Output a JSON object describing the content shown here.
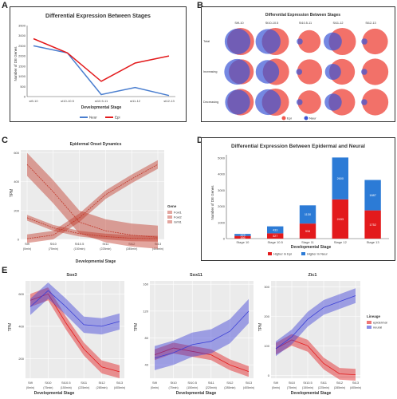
{
  "panel_letters": [
    "A",
    "B",
    "C",
    "D",
    "E"
  ],
  "chart_data": [
    {
      "id": "A",
      "type": "line",
      "title": "Differential Expression Between Stages",
      "xlabel": "Developmental Stage",
      "ylabel": "Number of DE Genes",
      "categories": [
        "st9-10",
        "st10-10.5",
        "st10.5-11",
        "st11-12",
        "st12-13"
      ],
      "yticks": [
        0,
        500,
        1000,
        1500,
        2000,
        2500,
        3000,
        3500
      ],
      "ylim": [
        0,
        3500
      ],
      "legend": "bottom",
      "series": [
        {
          "name": "Neur",
          "color": "#4a7ecf",
          "values": [
            2500,
            2150,
            100,
            450,
            50
          ]
        },
        {
          "name": "Epi",
          "color": "#e31a1c",
          "values": [
            2850,
            2150,
            750,
            1650,
            2000
          ]
        }
      ]
    },
    {
      "id": "B",
      "type": "venn-grid",
      "title": "Differential Expression Between Stages",
      "columns": [
        "St9-10",
        "St10-10.5",
        "St10.5-11",
        "St11-12",
        "St12-13"
      ],
      "rows": [
        "Total",
        "Increasing",
        "Decreasing"
      ],
      "legend": [
        "Epi",
        "Neur"
      ],
      "colors": {
        "Epi": "#f0584f",
        "Neur": "#3b55d6"
      },
      "cells": [
        [
          {
            "epi": 1.0,
            "neur": 0.9,
            "overlap": 0.8
          },
          {
            "epi": 1.0,
            "neur": 0.85,
            "overlap": 0.5
          },
          {
            "epi": 0.7,
            "neur": 0.05,
            "overlap": 0.0
          },
          {
            "epi": 1.0,
            "neur": 0.45,
            "overlap": 0.3
          },
          {
            "epi": 0.9,
            "neur": 0.05,
            "overlap": 0.0
          }
        ],
        [
          {
            "epi": 0.85,
            "neur": 0.9,
            "overlap": 0.7
          },
          {
            "epi": 0.95,
            "neur": 0.75,
            "overlap": 0.4
          },
          {
            "epi": 0.85,
            "neur": 0.05,
            "overlap": 0.0
          },
          {
            "epi": 0.9,
            "neur": 0.35,
            "overlap": 0.3
          },
          {
            "epi": 0.95,
            "neur": 0.05,
            "overlap": 0.0
          }
        ],
        [
          {
            "epi": 0.95,
            "neur": 0.85,
            "overlap": 0.8
          },
          {
            "epi": 1.0,
            "neur": 0.9,
            "overlap": 0.5
          },
          {
            "epi": 0.75,
            "neur": 0.05,
            "overlap": 0.0
          },
          {
            "epi": 0.95,
            "neur": 0.4,
            "overlap": 0.35
          },
          {
            "epi": 0.95,
            "neur": 0.05,
            "overlap": 0.0
          }
        ]
      ]
    },
    {
      "id": "C",
      "type": "line",
      "title": "Epidermal Onset Dynamics",
      "xlabel": "Developmental Stage",
      "ylabel": "TPM",
      "categories": [
        "St9",
        "St10",
        "St10.5",
        "St11",
        "St12",
        "St13"
      ],
      "sublabels": [
        "(0min)",
        "(75min)",
        "(150min)",
        "(225min)",
        "(285min)",
        "(405min)"
      ],
      "yticks": [
        0,
        200,
        400,
        600
      ],
      "ylim": [
        0,
        620
      ],
      "legend_title": "Gene",
      "legend": "right",
      "series": [
        {
          "name": "Foxi1",
          "color": "#c0392b",
          "values": [
            520,
            330,
            120,
            60,
            30,
            15
          ],
          "band": 80
        },
        {
          "name": "Foxi2",
          "color": "#c0392b",
          "values": [
            150,
            80,
            40,
            20,
            8,
            5
          ],
          "band": 20
        },
        {
          "name": "Grhl1",
          "color": "#c0392b",
          "values": [
            5,
            30,
            150,
            310,
            420,
            520
          ],
          "band": 30
        }
      ]
    },
    {
      "id": "D",
      "type": "bar",
      "stacked": true,
      "title": "Differential Expression Between Epidermal and Neural",
      "xlabel": "Developmental Stage",
      "ylabel": "Number of DE Genes",
      "categories": [
        "Stage 10",
        "Stage 10.5",
        "Stage 11",
        "Stage 12",
        "Stage 13"
      ],
      "yticks": [
        0,
        1000,
        2000,
        3000,
        4000,
        5000
      ],
      "ylim": [
        0,
        5200
      ],
      "legend": "bottom",
      "series": [
        {
          "name": "Higher in Epi",
          "color": "#e31a1c",
          "values": [
            166,
            327,
            934,
            2433,
            1752
          ]
        },
        {
          "name": "Higher in Neur",
          "color": "#2c7bd6",
          "values": [
            123,
            433,
            1130,
            2600,
            1887
          ]
        }
      ],
      "labels": {
        "epi": [
          "166",
          "327",
          "934",
          "2433",
          "1752"
        ],
        "neur": [
          "123",
          "433",
          "1130",
          "2600",
          "1887"
        ]
      }
    },
    {
      "id": "E1",
      "type": "line",
      "title": "Sox3",
      "xlabel": "Developmental Stage",
      "ylabel": "TPM",
      "categories": [
        "St9",
        "St10",
        "St10.5",
        "St11",
        "St12",
        "St13"
      ],
      "sublabels": [
        "(0min)",
        "(75min)",
        "(150min)",
        "(225min)",
        "(285min)",
        "(405min)"
      ],
      "yticks": [
        200,
        400,
        600
      ],
      "ylim": [
        80,
        680
      ],
      "series": [
        {
          "name": "epidermal",
          "color": "#e31a1c",
          "values": [
            560,
            600,
            420,
            260,
            150,
            120
          ],
          "band": 40
        },
        {
          "name": "neural",
          "color": "#3b3fd6",
          "values": [
            520,
            620,
            520,
            410,
            400,
            430
          ],
          "band": 50
        }
      ]
    },
    {
      "id": "E2",
      "type": "line",
      "title": "Sox11",
      "xlabel": "Developmental Stage",
      "ylabel": "TPM",
      "categories": [
        "St9",
        "St10",
        "St10.5",
        "St11",
        "St12",
        "St13"
      ],
      "sublabels": [
        "(0min)",
        "(75min)",
        "(150min)",
        "(225min)",
        "(285min)",
        "(405min)"
      ],
      "yticks": [
        40,
        80,
        120,
        160
      ],
      "ylim": [
        20,
        165
      ],
      "series": [
        {
          "name": "epidermal",
          "color": "#e31a1c",
          "values": [
            55,
            65,
            60,
            55,
            40,
            30
          ],
          "band": 8
        },
        {
          "name": "neural",
          "color": "#3b3fd6",
          "values": [
            50,
            58,
            70,
            75,
            90,
            120
          ],
          "band": 18
        }
      ]
    },
    {
      "id": "E3",
      "type": "line",
      "title": "Zic1",
      "xlabel": "Developmental Stage",
      "ylabel": "TPM",
      "categories": [
        "St9",
        "St10",
        "St10.5",
        "St11",
        "St12",
        "St13"
      ],
      "sublabels": [
        "(0min)",
        "(75min)",
        "(150min)",
        "(225min)",
        "(285min)",
        "(405min)"
      ],
      "yticks": [
        0,
        100,
        200,
        300
      ],
      "ylim": [
        -10,
        320
      ],
      "legend_title": "Lineage",
      "legend": "right",
      "series": [
        {
          "name": "epidermal",
          "color": "#e31a1c",
          "values": [
            90,
            120,
            100,
            40,
            5,
            2
          ],
          "band": 20
        },
        {
          "name": "neural",
          "color": "#3b3fd6",
          "values": [
            90,
            130,
            190,
            230,
            250,
            270
          ],
          "band": 25
        }
      ]
    }
  ]
}
